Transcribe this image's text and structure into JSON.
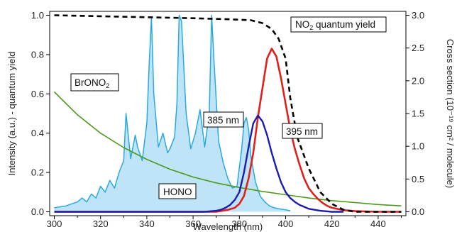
{
  "chart_data": {
    "type": "line",
    "x_axis": {
      "label": "Wavelength (nm)",
      "range": [
        298,
        452
      ],
      "ticks": [
        300,
        320,
        340,
        360,
        380,
        400,
        420,
        440
      ]
    },
    "y_left": {
      "label": "Intensity (a.u.) - quantum yield",
      "range": [
        -0.02,
        1.02
      ],
      "ticks": [
        "0.0",
        "0.2",
        "0.4",
        "0.6",
        "0.8",
        "1.0"
      ]
    },
    "y_right": {
      "label": "Cross section (10⁻¹⁹ cm² / molecule)",
      "range": [
        -0.06,
        3.06
      ],
      "ticks": [
        "0.0",
        "0.5",
        "1.0",
        "1.5",
        "2.0",
        "2.5",
        "3.0"
      ]
    },
    "annotations": {
      "no2": {
        "text": "NO",
        "sub": "2",
        "rest": " quantum yield"
      },
      "brono2": {
        "text": "BrONO",
        "sub": "2"
      },
      "hono": {
        "text": "HONO"
      },
      "led385": {
        "text": "385 nm"
      },
      "led395": {
        "text": "395 nm"
      }
    },
    "colors": {
      "no2_quantum_yield": "#000000",
      "brono2": "#4c9a1c",
      "hono_line": "#29a9e1",
      "hono_fill": "#bfe4f7",
      "led_385": "#1c1cb0",
      "led_395": "#e0201c"
    },
    "series": [
      {
        "axis": "left",
        "style": "dashed",
        "x": [
          300,
          320,
          340,
          360,
          375,
          385,
          390,
          394,
          397,
          400,
          402,
          405,
          410,
          415,
          420,
          425,
          430,
          450
        ],
        "y": [
          1.0,
          0.995,
          0.99,
          0.985,
          0.98,
          0.975,
          0.96,
          0.93,
          0.88,
          0.78,
          0.58,
          0.38,
          0.22,
          0.1,
          0.04,
          0.01,
          0.0,
          0.0
        ]
      },
      {
        "axis": "right",
        "x": [
          300,
          310,
          320,
          330,
          340,
          350,
          360,
          370,
          380,
          390,
          400,
          410,
          420,
          430,
          440,
          450
        ],
        "y": [
          1.83,
          1.48,
          1.2,
          0.98,
          0.8,
          0.65,
          0.53,
          0.44,
          0.37,
          0.31,
          0.26,
          0.21,
          0.17,
          0.14,
          0.11,
          0.09
        ]
      },
      {
        "axis": "left",
        "filled": true,
        "x": [
          300,
          305,
          310,
          312,
          314,
          316,
          318,
          320,
          322,
          324,
          326,
          328,
          330,
          331,
          333,
          335,
          336,
          338,
          340,
          341,
          342,
          343,
          345,
          347,
          349,
          350,
          352,
          353,
          354,
          355,
          357,
          359,
          361,
          363,
          365,
          367,
          368,
          369,
          371,
          373,
          375,
          377,
          379,
          381,
          382,
          383,
          384,
          385,
          387,
          389,
          391,
          393,
          395,
          397,
          400,
          402
        ],
        "y": [
          0.02,
          0.03,
          0.05,
          0.07,
          0.05,
          0.09,
          0.07,
          0.13,
          0.1,
          0.16,
          0.12,
          0.2,
          0.26,
          0.5,
          0.27,
          0.39,
          0.33,
          0.26,
          0.45,
          0.75,
          0.99,
          0.6,
          0.33,
          0.4,
          0.3,
          0.32,
          0.38,
          0.55,
          1.0,
          0.97,
          0.5,
          0.32,
          0.4,
          0.52,
          0.33,
          0.5,
          1.0,
          0.78,
          0.36,
          0.25,
          0.17,
          0.12,
          0.13,
          0.32,
          0.45,
          0.48,
          0.42,
          0.28,
          0.15,
          0.08,
          0.05,
          0.03,
          0.02,
          0.015,
          0.01,
          0.005
        ]
      },
      {
        "axis": "left",
        "x": [
          300,
          365,
          370,
          372,
          374,
          376,
          378,
          380,
          382,
          384,
          386,
          388,
          390,
          392,
          394,
          396,
          398,
          400,
          402,
          404,
          406,
          408,
          410,
          415,
          420,
          425
        ],
        "y": [
          0.0,
          0.0,
          0.005,
          0.01,
          0.02,
          0.035,
          0.06,
          0.1,
          0.2,
          0.33,
          0.45,
          0.49,
          0.46,
          0.39,
          0.3,
          0.22,
          0.15,
          0.1,
          0.07,
          0.05,
          0.035,
          0.025,
          0.015,
          0.005,
          0.0,
          0.0
        ]
      },
      {
        "axis": "left",
        "x": [
          300,
          370,
          375,
          378,
          380,
          382,
          384,
          386,
          388,
          390,
          392,
          394,
          396,
          398,
          400,
          402,
          404,
          406,
          408,
          410,
          412,
          414,
          416,
          418,
          420,
          425,
          430,
          440,
          450
        ],
        "y": [
          0.0,
          0.0,
          0.01,
          0.02,
          0.04,
          0.08,
          0.17,
          0.3,
          0.48,
          0.63,
          0.78,
          0.83,
          0.79,
          0.68,
          0.55,
          0.42,
          0.32,
          0.24,
          0.17,
          0.12,
          0.09,
          0.065,
          0.045,
          0.03,
          0.02,
          0.008,
          0.003,
          0.0,
          0.0
        ]
      }
    ]
  }
}
